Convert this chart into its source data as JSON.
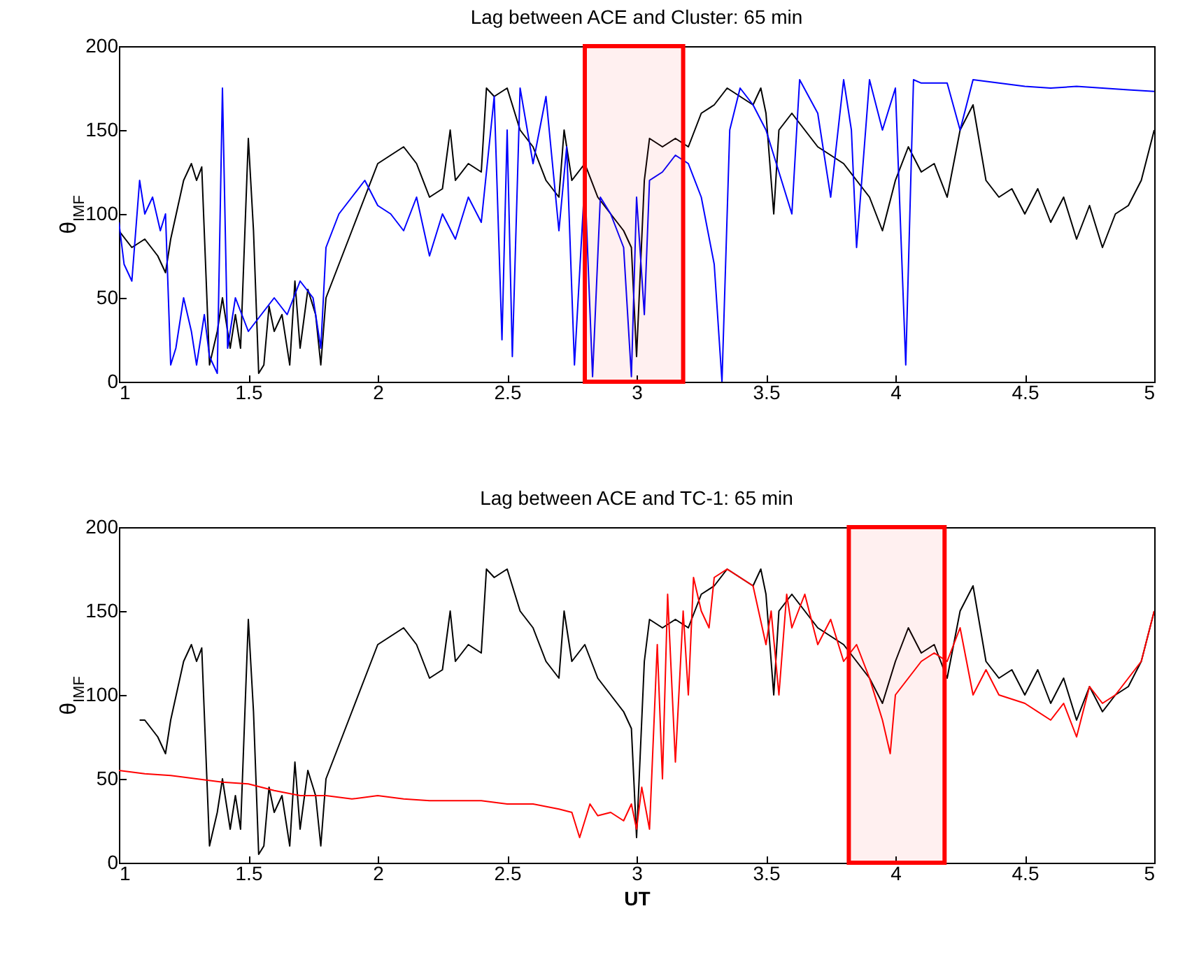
{
  "chart_data": [
    {
      "type": "line",
      "title": "Lag between ACE and Cluster: 65 min",
      "ylabel": "θ$_{IMF}$",
      "xlim": [
        1,
        5
      ],
      "ylim": [
        0,
        200
      ],
      "xticks": [
        1,
        1.5,
        2,
        2.5,
        3,
        3.5,
        4,
        4.5,
        5
      ],
      "yticks": [
        0,
        50,
        100,
        150,
        200
      ],
      "grid": false,
      "series": [
        {
          "color": "#000000",
          "x": [
            1.0,
            1.05,
            1.1,
            1.15,
            1.18,
            1.2,
            1.25,
            1.28,
            1.3,
            1.32,
            1.35,
            1.38,
            1.4,
            1.43,
            1.45,
            1.47,
            1.5,
            1.52,
            1.54,
            1.56,
            1.58,
            1.6,
            1.63,
            1.66,
            1.68,
            1.7,
            1.73,
            1.76,
            1.78,
            1.8,
            1.85,
            1.9,
            1.95,
            2.0,
            2.05,
            2.1,
            2.15,
            2.2,
            2.25,
            2.28,
            2.3,
            2.35,
            2.4,
            2.42,
            2.45,
            2.5,
            2.55,
            2.6,
            2.65,
            2.7,
            2.72,
            2.75,
            2.8,
            2.85,
            2.9,
            2.95,
            2.98,
            3.0,
            3.03,
            3.05,
            3.1,
            3.15,
            3.2,
            3.25,
            3.3,
            3.35,
            3.4,
            3.45,
            3.48,
            3.5,
            3.53,
            3.55,
            3.6,
            3.65,
            3.7,
            3.75,
            3.8,
            3.85,
            3.9,
            3.95,
            4.0,
            4.05,
            4.1,
            4.15,
            4.2,
            4.25,
            4.3,
            4.35,
            4.4,
            4.45,
            4.5,
            4.55,
            4.6,
            4.65,
            4.7,
            4.75,
            4.8,
            4.85,
            4.9,
            4.95,
            5.0
          ],
          "values": [
            90,
            80,
            85,
            75,
            65,
            85,
            120,
            130,
            120,
            128,
            10,
            30,
            50,
            20,
            40,
            20,
            145,
            90,
            5,
            10,
            45,
            30,
            40,
            10,
            60,
            20,
            55,
            40,
            10,
            50,
            70,
            90,
            110,
            130,
            135,
            140,
            130,
            110,
            115,
            150,
            120,
            130,
            125,
            175,
            170,
            175,
            150,
            140,
            120,
            110,
            150,
            120,
            130,
            110,
            100,
            90,
            80,
            15,
            120,
            145,
            140,
            145,
            140,
            160,
            165,
            175,
            170,
            165,
            175,
            160,
            100,
            150,
            160,
            150,
            140,
            135,
            130,
            120,
            110,
            90,
            120,
            140,
            125,
            130,
            110,
            150,
            165,
            120,
            110,
            115,
            100,
            115,
            95,
            110,
            85,
            105,
            80,
            100,
            105,
            120,
            150
          ]
        },
        {
          "color": "#0000ff",
          "x": [
            1.0,
            1.02,
            1.05,
            1.08,
            1.1,
            1.13,
            1.16,
            1.18,
            1.2,
            1.22,
            1.25,
            1.28,
            1.3,
            1.33,
            1.35,
            1.38,
            1.4,
            1.42,
            1.45,
            1.5,
            1.55,
            1.6,
            1.65,
            1.7,
            1.75,
            1.78,
            1.8,
            1.85,
            1.9,
            1.95,
            2.0,
            2.05,
            2.1,
            2.15,
            2.2,
            2.25,
            2.3,
            2.35,
            2.4,
            2.45,
            2.48,
            2.5,
            2.52,
            2.55,
            2.6,
            2.65,
            2.7,
            2.73,
            2.76,
            2.8,
            2.83,
            2.86,
            2.9,
            2.95,
            2.98,
            3.0,
            3.03,
            3.05,
            3.1,
            3.15,
            3.2,
            3.25,
            3.3,
            3.33,
            3.36,
            3.4,
            3.45,
            3.5,
            3.55,
            3.6,
            3.63,
            3.7,
            3.75,
            3.8,
            3.83,
            3.85,
            3.9,
            3.95,
            4.0,
            4.04,
            4.07,
            4.1,
            4.2,
            4.25,
            4.3,
            4.4,
            4.5,
            4.6,
            4.7,
            4.8,
            4.9,
            5.0
          ],
          "values": [
            95,
            70,
            60,
            120,
            100,
            110,
            90,
            100,
            10,
            20,
            50,
            30,
            10,
            40,
            15,
            5,
            175,
            20,
            50,
            30,
            40,
            50,
            40,
            60,
            50,
            20,
            80,
            100,
            110,
            120,
            105,
            100,
            90,
            110,
            75,
            100,
            85,
            110,
            95,
            170,
            25,
            150,
            15,
            175,
            130,
            170,
            90,
            140,
            10,
            120,
            3,
            110,
            100,
            80,
            3,
            110,
            40,
            120,
            125,
            135,
            130,
            110,
            70,
            0,
            150,
            175,
            165,
            150,
            125,
            100,
            180,
            160,
            110,
            180,
            150,
            80,
            180,
            150,
            175,
            10,
            180,
            178,
            178,
            150,
            180,
            178,
            176,
            175,
            176,
            175,
            174,
            173
          ]
        }
      ],
      "bands": [
        {
          "axis": "x",
          "from": 2.8,
          "to": 3.18,
          "color": "#ff0000"
        }
      ]
    },
    {
      "type": "line",
      "title": "Lag between ACE and TC-1: 65 min",
      "xlabel": "UT",
      "ylabel": "θ$_{IMF}$",
      "xlim": [
        1,
        5
      ],
      "ylim": [
        0,
        200
      ],
      "xticks": [
        1,
        1.5,
        2,
        2.5,
        3,
        3.5,
        4,
        4.5,
        5
      ],
      "yticks": [
        0,
        50,
        100,
        150,
        200
      ],
      "grid": false,
      "series": [
        {
          "color": "#000000",
          "x": [
            1.08,
            1.1,
            1.15,
            1.18,
            1.2,
            1.25,
            1.28,
            1.3,
            1.32,
            1.35,
            1.38,
            1.4,
            1.43,
            1.45,
            1.47,
            1.5,
            1.52,
            1.54,
            1.56,
            1.58,
            1.6,
            1.63,
            1.66,
            1.68,
            1.7,
            1.73,
            1.76,
            1.78,
            1.8,
            1.85,
            1.9,
            1.95,
            2.0,
            2.05,
            2.1,
            2.15,
            2.2,
            2.25,
            2.28,
            2.3,
            2.35,
            2.4,
            2.42,
            2.45,
            2.5,
            2.55,
            2.6,
            2.65,
            2.7,
            2.72,
            2.75,
            2.8,
            2.85,
            2.9,
            2.95,
            2.98,
            3.0,
            3.03,
            3.05,
            3.1,
            3.15,
            3.2,
            3.25,
            3.3,
            3.35,
            3.4,
            3.45,
            3.48,
            3.5,
            3.53,
            3.55,
            3.6,
            3.65,
            3.7,
            3.75,
            3.8,
            3.85,
            3.9,
            3.95,
            4.0,
            4.05,
            4.1,
            4.15,
            4.2,
            4.25,
            4.3,
            4.35,
            4.4,
            4.45,
            4.5,
            4.55,
            4.6,
            4.65,
            4.7,
            4.75,
            4.8,
            4.85,
            4.9,
            4.95,
            5.0
          ],
          "values": [
            85,
            85,
            75,
            65,
            85,
            120,
            130,
            120,
            128,
            10,
            30,
            50,
            20,
            40,
            20,
            145,
            90,
            5,
            10,
            45,
            30,
            40,
            10,
            60,
            20,
            55,
            40,
            10,
            50,
            70,
            90,
            110,
            130,
            135,
            140,
            130,
            110,
            115,
            150,
            120,
            130,
            125,
            175,
            170,
            175,
            150,
            140,
            120,
            110,
            150,
            120,
            130,
            110,
            100,
            90,
            80,
            15,
            120,
            145,
            140,
            145,
            140,
            160,
            165,
            175,
            170,
            165,
            175,
            160,
            100,
            150,
            160,
            150,
            140,
            135,
            130,
            120,
            110,
            95,
            120,
            140,
            125,
            130,
            110,
            150,
            165,
            120,
            110,
            115,
            100,
            115,
            95,
            110,
            85,
            105,
            90,
            100,
            105,
            120,
            150
          ]
        },
        {
          "color": "#ff0000",
          "x": [
            1.0,
            1.1,
            1.2,
            1.3,
            1.4,
            1.5,
            1.6,
            1.7,
            1.8,
            1.9,
            2.0,
            2.1,
            2.2,
            2.3,
            2.4,
            2.5,
            2.6,
            2.7,
            2.75,
            2.78,
            2.82,
            2.85,
            2.9,
            2.95,
            2.98,
            3.0,
            3.02,
            3.05,
            3.08,
            3.1,
            3.12,
            3.15,
            3.18,
            3.2,
            3.22,
            3.25,
            3.28,
            3.3,
            3.35,
            3.4,
            3.45,
            3.5,
            3.52,
            3.55,
            3.58,
            3.6,
            3.65,
            3.7,
            3.75,
            3.8,
            3.85,
            3.9,
            3.95,
            3.98,
            4.0,
            4.05,
            4.1,
            4.15,
            4.2,
            4.25,
            4.3,
            4.35,
            4.4,
            4.5,
            4.6,
            4.65,
            4.7,
            4.75,
            4.8,
            4.85,
            4.9,
            4.95,
            5.0
          ],
          "values": [
            55,
            53,
            52,
            50,
            48,
            47,
            43,
            40,
            40,
            38,
            40,
            38,
            37,
            37,
            37,
            35,
            35,
            32,
            30,
            15,
            35,
            28,
            30,
            25,
            35,
            20,
            45,
            20,
            130,
            50,
            160,
            60,
            150,
            100,
            170,
            150,
            140,
            170,
            175,
            170,
            165,
            130,
            150,
            100,
            160,
            140,
            160,
            130,
            145,
            120,
            130,
            110,
            85,
            65,
            100,
            110,
            120,
            125,
            120,
            140,
            100,
            115,
            100,
            95,
            85,
            95,
            75,
            105,
            95,
            100,
            110,
            120,
            150
          ]
        }
      ],
      "bands": [
        {
          "axis": "x",
          "from": 3.82,
          "to": 4.19,
          "color": "#ff0000"
        }
      ]
    }
  ]
}
